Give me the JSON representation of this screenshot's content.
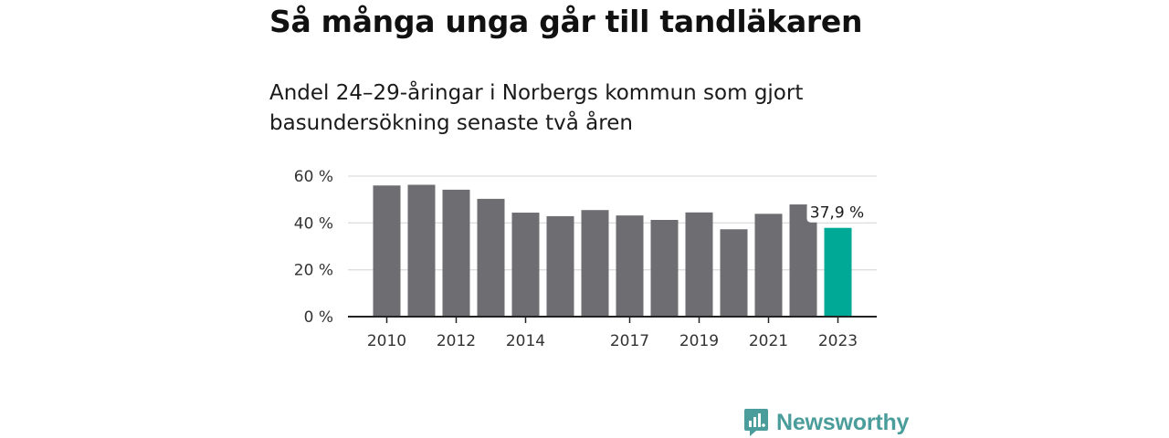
{
  "header": {
    "title": "Så många unga går till tandläkaren",
    "subtitle": "Andel 24–29-åringar i Norbergs kommun som gjort basundersökning senaste två åren"
  },
  "chart_data": {
    "type": "bar",
    "categories": [
      "2010",
      "2011",
      "2012",
      "2013",
      "2014",
      "2015",
      "2016",
      "2017",
      "2018",
      "2019",
      "2020",
      "2021",
      "2022",
      "2023"
    ],
    "x_tick_labels": [
      "2010",
      "2012",
      "2014",
      "2017",
      "2019",
      "2021",
      "2023"
    ],
    "values": [
      56,
      56.3,
      54.2,
      50.3,
      44.4,
      42.9,
      45.5,
      43.2,
      41.3,
      44.5,
      37.3,
      43.9,
      47.9,
      37.9
    ],
    "value_label": {
      "index": 13,
      "text": "37,9 %"
    },
    "y_ticks": [
      0,
      20,
      40,
      60
    ],
    "y_tick_labels": [
      "0 %",
      "20 %",
      "40 %",
      "60 %"
    ],
    "ylim": [
      0,
      60
    ],
    "grid": true,
    "colors": {
      "bar": "#6e6d72",
      "highlight": "#00a896",
      "grid": "#dddddd",
      "axis": "#222222"
    }
  },
  "footer": {
    "logo_text": "Newsworthy"
  }
}
